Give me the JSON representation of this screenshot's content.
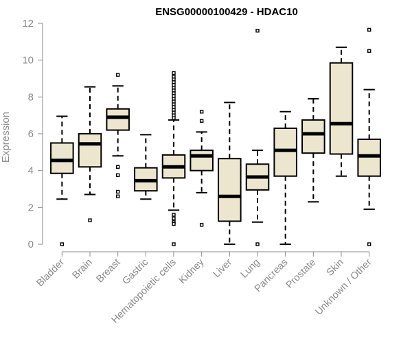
{
  "chart_data": {
    "type": "box",
    "title": "ENSG00000100429 - HDAC10",
    "xlabel": "",
    "ylabel": "Expression",
    "ylim": [
      0,
      12
    ],
    "yticks": [
      0,
      2,
      4,
      6,
      8,
      10,
      12
    ],
    "grid": false,
    "colors": {
      "box_fill": "#ede6cf",
      "stroke": "#000000",
      "axis": "#8a8a8a"
    },
    "categories": [
      "Bladder",
      "Brain",
      "Breast",
      "Gastric",
      "Hematopoietic cells",
      "Kidney",
      "Liver",
      "Lung",
      "Pancreas",
      "Prostate",
      "Skin",
      "Unknown / Other"
    ],
    "boxes": [
      {
        "whisker_low": 2.45,
        "q1": 3.85,
        "median": 4.55,
        "q3": 5.5,
        "whisker_high": 6.95,
        "outliers": [
          0.0
        ]
      },
      {
        "whisker_low": 2.7,
        "q1": 4.2,
        "median": 5.45,
        "q3": 6.0,
        "whisker_high": 8.55,
        "outliers": [
          1.3
        ]
      },
      {
        "whisker_low": 4.8,
        "q1": 6.2,
        "median": 6.9,
        "q3": 7.35,
        "whisker_high": 8.6,
        "outliers": [
          9.2,
          4.2,
          3.75,
          2.85,
          2.6
        ]
      },
      {
        "whisker_low": 2.45,
        "q1": 2.9,
        "median": 3.45,
        "q3": 4.15,
        "whisker_high": 5.95,
        "outliers": []
      },
      {
        "whisker_low": 1.85,
        "q1": 3.6,
        "median": 4.2,
        "q3": 4.85,
        "whisker_high": 6.75,
        "outliers": [
          9.3,
          9.1,
          8.95,
          8.8,
          8.65,
          8.5,
          8.35,
          8.2,
          8.05,
          7.9,
          7.75,
          7.6,
          7.45,
          7.3,
          7.15,
          7.0,
          6.85,
          1.6,
          1.4,
          1.2,
          1.1,
          0.0
        ]
      },
      {
        "whisker_low": 2.8,
        "q1": 4.0,
        "median": 4.8,
        "q3": 5.1,
        "whisker_high": 6.1,
        "outliers": [
          7.2,
          6.7,
          1.05
        ]
      },
      {
        "whisker_low": 0.0,
        "q1": 1.25,
        "median": 2.6,
        "q3": 4.65,
        "whisker_high": 7.7,
        "outliers": []
      },
      {
        "whisker_low": 1.2,
        "q1": 2.95,
        "median": 3.65,
        "q3": 4.35,
        "whisker_high": 5.1,
        "outliers": [
          11.6,
          0.0
        ]
      },
      {
        "whisker_low": 0.0,
        "q1": 3.7,
        "median": 5.1,
        "q3": 6.3,
        "whisker_high": 7.2,
        "outliers": []
      },
      {
        "whisker_low": 2.3,
        "q1": 4.95,
        "median": 6.0,
        "q3": 6.75,
        "whisker_high": 7.9,
        "outliers": []
      },
      {
        "whisker_low": 3.7,
        "q1": 4.9,
        "median": 6.55,
        "q3": 9.85,
        "whisker_high": 10.7,
        "outliers": []
      },
      {
        "whisker_low": 1.9,
        "q1": 3.7,
        "median": 4.8,
        "q3": 5.7,
        "whisker_high": 8.4,
        "outliers": [
          11.65,
          10.5,
          0.0
        ]
      }
    ]
  }
}
